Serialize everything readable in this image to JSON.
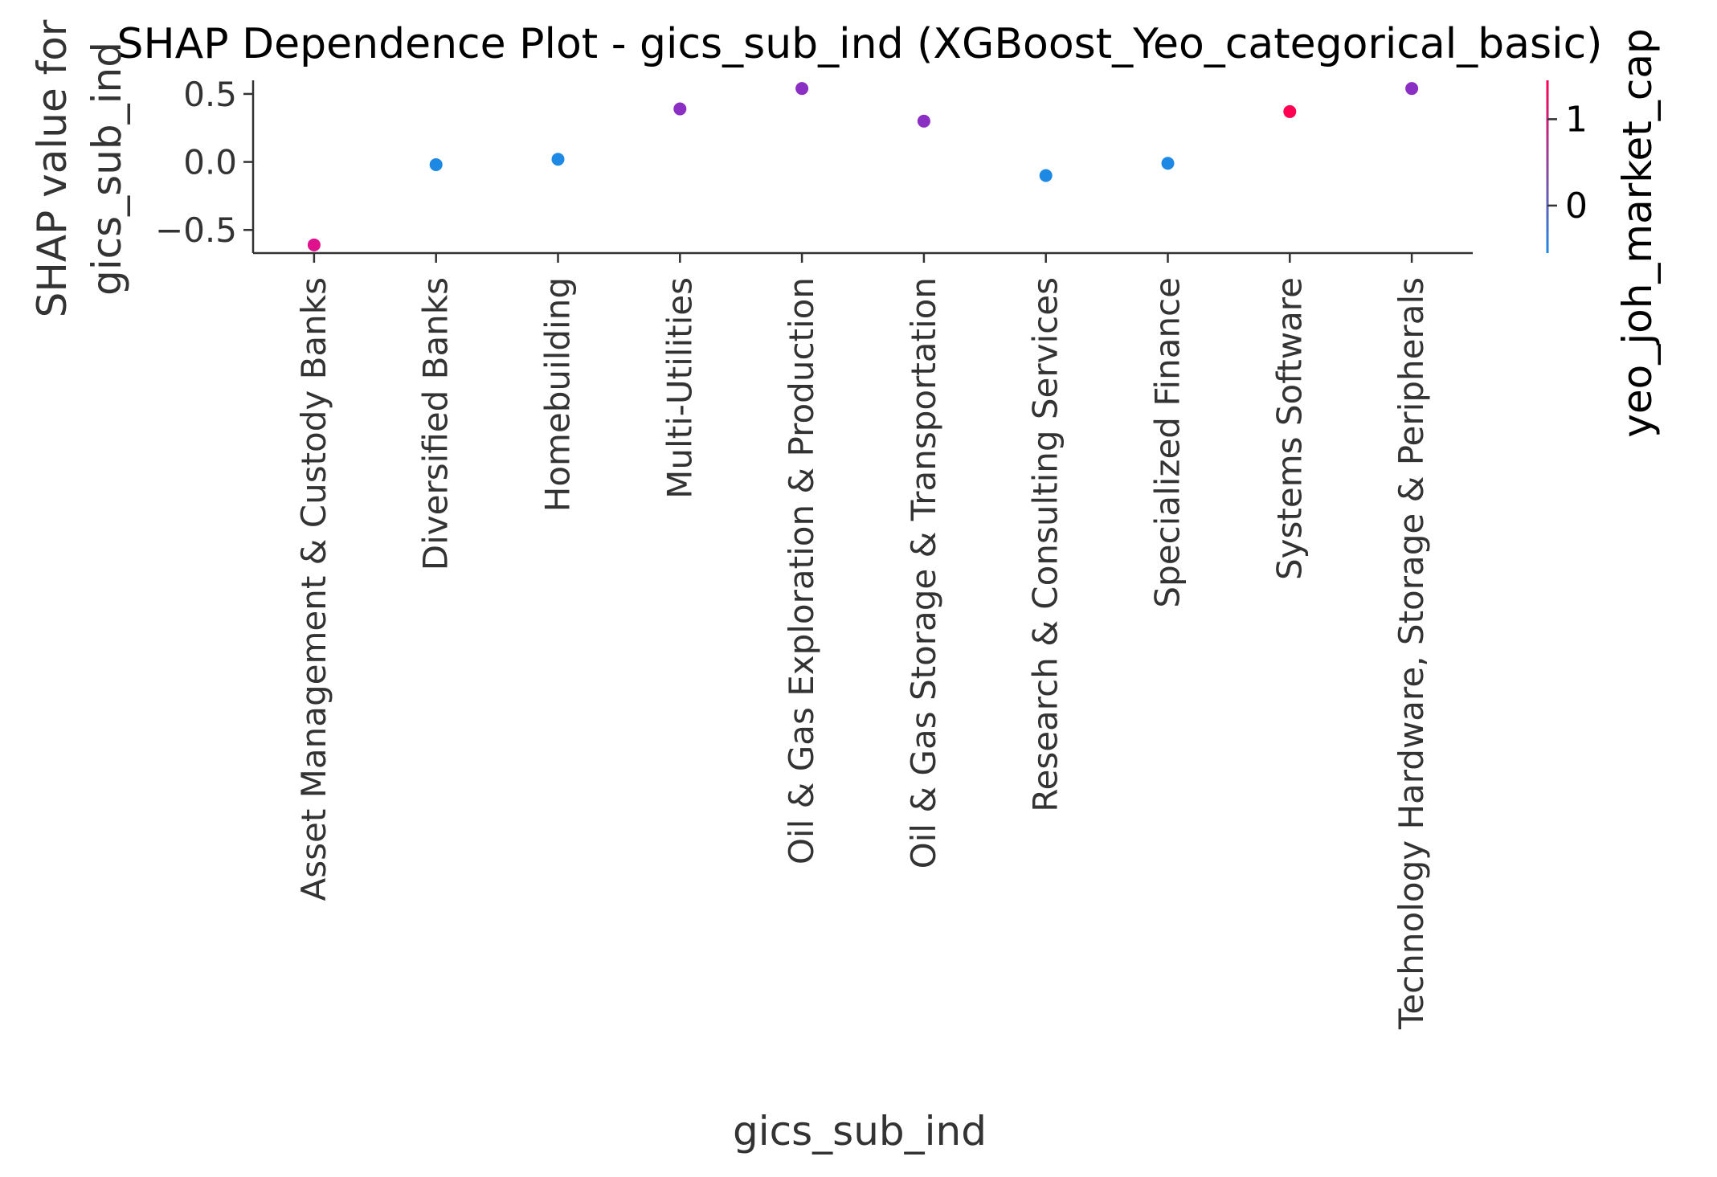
{
  "chart_data": {
    "type": "scatter",
    "title": "SHAP Dependence Plot - gics_sub_ind (XGBoost_Yeo_categorical_basic)",
    "xlabel": "gics_sub_ind",
    "ylabel_lines": [
      "SHAP value for",
      "gics_sub_ind"
    ],
    "colorbar_label": "yeo_joh_market_cap",
    "categories": [
      "Asset Management & Custody Banks",
      "Diversified Banks",
      "Homebuilding",
      "Multi-Utilities",
      "Oil & Gas Exploration & Production",
      "Oil & Gas Storage & Transportation",
      "Research & Consulting Services",
      "Specialized Finance",
      "Systems Software",
      "Technology Hardware, Storage & Peripherals"
    ],
    "values": [
      -0.61,
      -0.02,
      0.02,
      0.39,
      0.54,
      0.3,
      -0.1,
      -0.01,
      0.37,
      0.54
    ],
    "color_values": [
      1.2,
      -0.55,
      -0.5,
      0.1,
      0.1,
      0.1,
      -0.55,
      -0.55,
      1.45,
      0.1
    ],
    "point_colors": [
      "#e0118c",
      "#1e88e5",
      "#1e88e5",
      "#8a2ec4",
      "#8a2ec4",
      "#8a2ec4",
      "#1e88e5",
      "#1e88e5",
      "#ff0052",
      "#8a2ec4"
    ],
    "yticks": [
      0.5,
      0.0,
      -0.5
    ],
    "ytick_labels": [
      "0.5",
      "0.0",
      "−0.5"
    ],
    "ylim": [
      -0.67,
      0.6
    ],
    "colorbar_ticks": [
      1,
      0
    ],
    "colorbar_tick_labels": [
      "1",
      "0"
    ],
    "colorbar_range": [
      -0.55,
      1.45
    ],
    "colorbar_colors": [
      "#1e88e5",
      "#ff0052"
    ],
    "grid": false
  }
}
